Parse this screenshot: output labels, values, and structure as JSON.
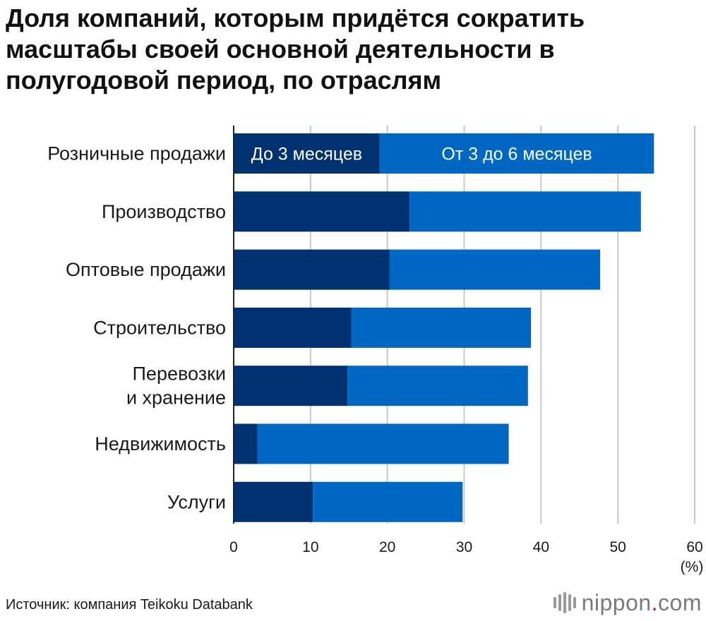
{
  "title_lines": [
    "Доля компаний, которым придётся сократить",
    "масштабы своей основной деятельности в",
    "полугодовой период, по отраслям"
  ],
  "source": "Источник: компания Teikoku Databank",
  "brand": {
    "name": "nippon",
    "dot": ".",
    "tld": "com"
  },
  "chart_data": {
    "type": "bar",
    "orientation": "horizontal",
    "stacked": true,
    "categories": [
      [
        "Розничные продажи"
      ],
      [
        "Производство"
      ],
      [
        "Оптовые продажи"
      ],
      [
        "Строительство"
      ],
      [
        "Перевозки",
        "и хранение"
      ],
      [
        "Недвижимость"
      ],
      [
        "Услуги"
      ]
    ],
    "series": [
      {
        "name": "До 3 месяцев",
        "color": "#003170",
        "values": [
          19.0,
          22.9,
          20.3,
          15.3,
          14.8,
          3.1,
          10.3
        ]
      },
      {
        "name": "От 3 до 6 месяцев",
        "color": "#0068c2",
        "values": [
          35.7,
          30.1,
          27.4,
          23.4,
          23.5,
          32.7,
          19.5
        ]
      }
    ],
    "xlim": [
      0,
      60
    ],
    "xticks": [
      "0",
      "10",
      "20",
      "30",
      "40",
      "50",
      "60"
    ],
    "xunit": "(%)",
    "grid": true,
    "legend": "inside-first-bar"
  }
}
